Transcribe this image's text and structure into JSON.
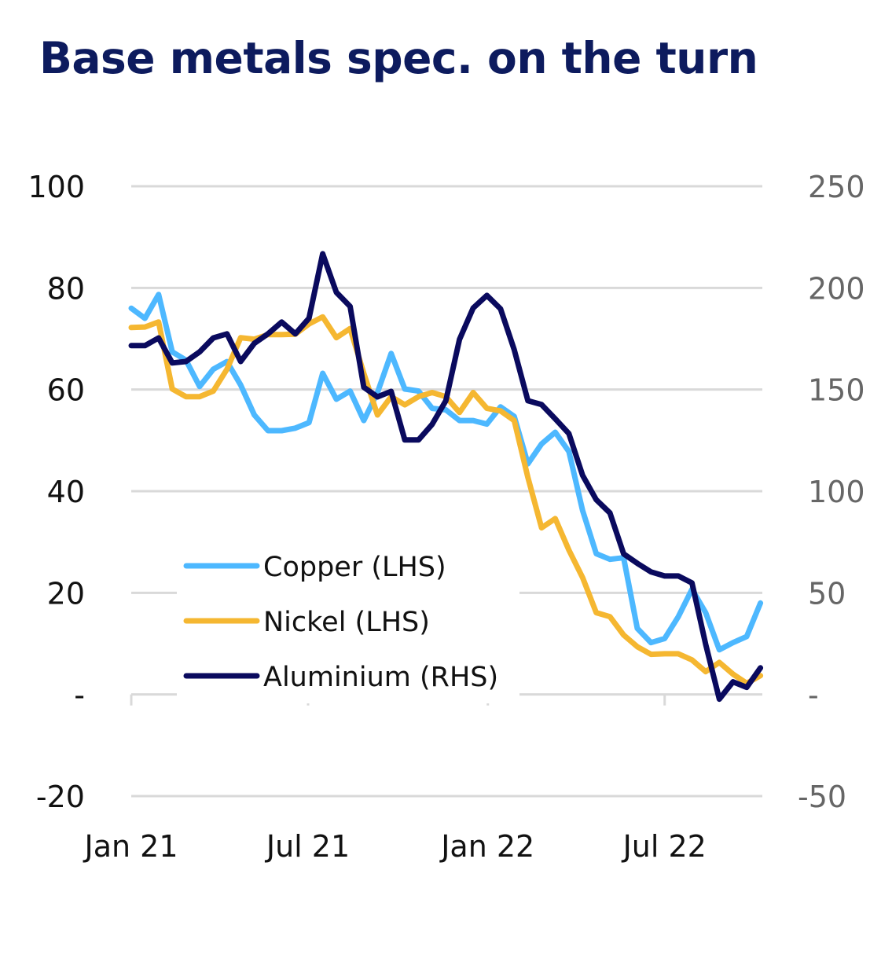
{
  "chart_data": {
    "type": "line",
    "title": "Base metals spec. on the turn",
    "xlabel": "",
    "ylabel": "",
    "x_tick_labels": [
      "Jan 21",
      "Jul 21",
      "Jan 22",
      "Jul 22"
    ],
    "x_tick_dates": [
      "2021-01-01",
      "2021-07-01",
      "2022-01-01",
      "2022-07-01"
    ],
    "y_left": {
      "ylim": [
        -20,
        100
      ],
      "tick_labels": [
        "100",
        "80",
        "60",
        "40",
        "20",
        "-",
        "-20"
      ],
      "tick_values": [
        100,
        80,
        60,
        40,
        20,
        0,
        -20
      ]
    },
    "y_right": {
      "ylim": [
        -50,
        250
      ],
      "tick_labels": [
        "250",
        "200",
        "150",
        "100",
        "50",
        "-",
        "-50"
      ],
      "tick_values": [
        250,
        200,
        150,
        100,
        50,
        0,
        -50
      ]
    },
    "grid": true,
    "legend": "bottom-left",
    "x": [
      "2021-01-01",
      "2021-01-15",
      "2021-01-29",
      "2021-02-12",
      "2021-02-26",
      "2021-03-12",
      "2021-03-26",
      "2021-04-09",
      "2021-04-23",
      "2021-05-07",
      "2021-05-21",
      "2021-06-04",
      "2021-06-18",
      "2021-07-02",
      "2021-07-16",
      "2021-07-30",
      "2021-08-13",
      "2021-08-27",
      "2021-09-10",
      "2021-09-24",
      "2021-10-08",
      "2021-10-22",
      "2021-11-05",
      "2021-11-19",
      "2021-12-03",
      "2021-12-17",
      "2021-12-31",
      "2022-01-14",
      "2022-01-28",
      "2022-02-11",
      "2022-02-25",
      "2022-03-11",
      "2022-03-25",
      "2022-04-08",
      "2022-04-22",
      "2022-05-06",
      "2022-05-20",
      "2022-06-03",
      "2022-06-17",
      "2022-07-01",
      "2022-07-15",
      "2022-07-29",
      "2022-08-12",
      "2022-08-26",
      "2022-09-09",
      "2022-09-23",
      "2022-10-07"
    ],
    "series": [
      {
        "name": "Copper (LHS)",
        "axis": "left",
        "color": "#4db8ff",
        "values": [
          76.0,
          74.0,
          78.7,
          67.4,
          65.8,
          60.6,
          64.0,
          65.5,
          60.9,
          55.0,
          51.9,
          51.9,
          52.4,
          53.5,
          63.2,
          58.1,
          59.7,
          53.9,
          59.4,
          67.1,
          60.1,
          59.7,
          56.3,
          56.0,
          53.9,
          53.9,
          53.2,
          56.6,
          54.7,
          45.4,
          49.3,
          51.6,
          47.8,
          36.2,
          27.7,
          26.6,
          26.9,
          13.0,
          10.2,
          11.0,
          15.3,
          20.7,
          16.1,
          8.8,
          10.2,
          11.4,
          18.0
        ]
      },
      {
        "name": "Nickel (LHS)",
        "axis": "left",
        "color": "#f5b731",
        "values": [
          72.2,
          72.3,
          73.3,
          60.1,
          58.6,
          58.6,
          59.7,
          64.0,
          70.2,
          69.9,
          70.8,
          70.8,
          70.9,
          72.9,
          74.3,
          70.2,
          72.0,
          63.2,
          55.0,
          58.6,
          57.0,
          58.6,
          59.4,
          58.6,
          55.5,
          59.4,
          56.3,
          55.8,
          53.9,
          42.7,
          32.8,
          34.6,
          28.4,
          23.0,
          16.1,
          15.3,
          11.7,
          9.4,
          7.9,
          8.0,
          8.0,
          6.8,
          4.5,
          6.3,
          4.0,
          2.2,
          3.7
        ]
      },
      {
        "name": "Aluminium (RHS)",
        "axis": "right",
        "color": "#0a0a5e",
        "values": [
          171.6,
          171.6,
          175.4,
          163.1,
          163.8,
          168.5,
          175.4,
          177.4,
          163.8,
          172.7,
          177.4,
          183.2,
          177.4,
          185.1,
          216.8,
          197.8,
          190.9,
          151.1,
          146.4,
          149.1,
          125.2,
          125.2,
          132.9,
          144.5,
          174.7,
          190.1,
          196.3,
          189.7,
          169.6,
          144.5,
          142.6,
          135.6,
          128.3,
          107.8,
          95.8,
          89.3,
          69.2,
          64.5,
          60.3,
          58.3,
          58.3,
          54.9,
          24.7,
          -2.3,
          6.2,
          3.5,
          13.1
        ]
      }
    ]
  }
}
